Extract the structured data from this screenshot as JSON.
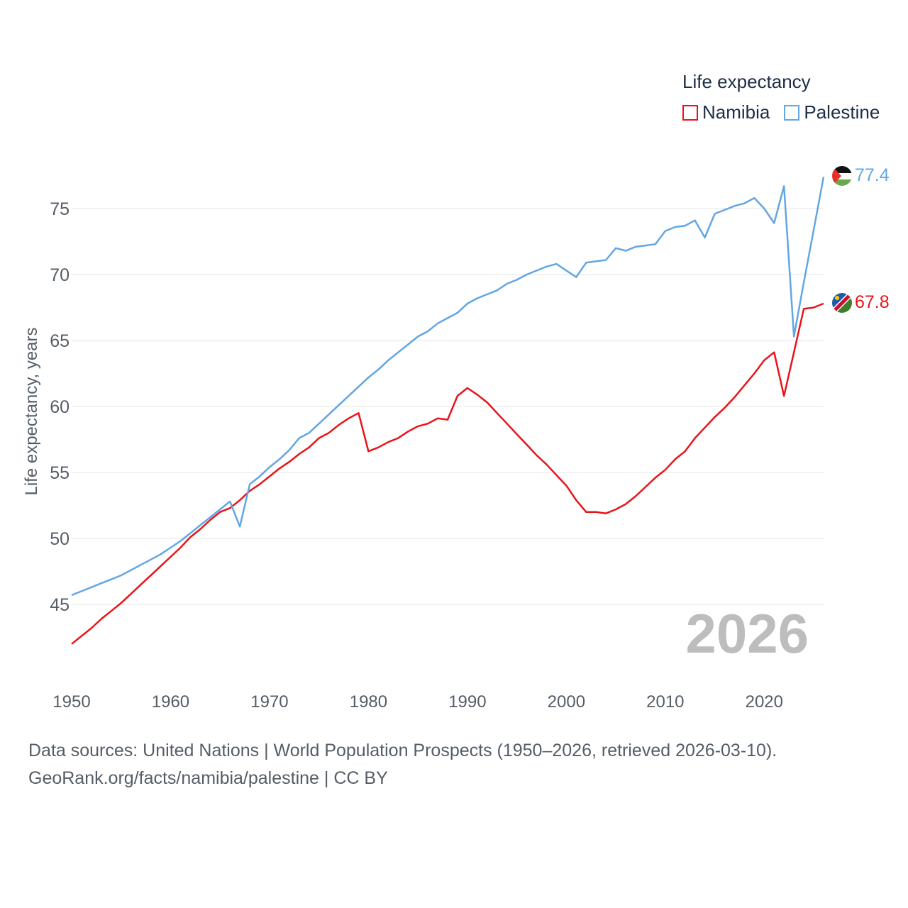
{
  "legend": {
    "title": "Life expectancy",
    "items": [
      {
        "name": "Namibia",
        "color": "#e8141a"
      },
      {
        "name": "Palestine",
        "color": "#62a6e4"
      }
    ]
  },
  "source": {
    "line1": "Data sources: United Nations | World Population Prospects (1950–2026, retrieved 2026-03-10).",
    "line2": "GeoRank.org/facts/namibia/palestine | CC BY"
  },
  "chart_data": {
    "type": "line",
    "title": "Life expectancy",
    "xlabel": "",
    "ylabel": "Life expectancy, years",
    "year_label": "2026",
    "xlim": [
      1950,
      2026
    ],
    "ylim": [
      42,
      80
    ],
    "xticks": [
      1950,
      1960,
      1970,
      1980,
      1990,
      2000,
      2010,
      2020
    ],
    "yticks": [
      45,
      50,
      55,
      60,
      65,
      70,
      75
    ],
    "grid": true,
    "legend_position": "top-right",
    "x": [
      1950,
      1951,
      1952,
      1953,
      1954,
      1955,
      1956,
      1957,
      1958,
      1959,
      1960,
      1961,
      1962,
      1963,
      1964,
      1965,
      1966,
      1967,
      1968,
      1969,
      1970,
      1971,
      1972,
      1973,
      1974,
      1975,
      1976,
      1977,
      1978,
      1979,
      1980,
      1981,
      1982,
      1983,
      1984,
      1985,
      1986,
      1987,
      1988,
      1989,
      1990,
      1991,
      1992,
      1993,
      1994,
      1995,
      1996,
      1997,
      1998,
      1999,
      2000,
      2001,
      2002,
      2003,
      2004,
      2005,
      2006,
      2007,
      2008,
      2009,
      2010,
      2011,
      2012,
      2013,
      2014,
      2015,
      2016,
      2017,
      2018,
      2019,
      2020,
      2021,
      2022,
      2023,
      2024,
      2025,
      2026
    ],
    "series": [
      {
        "name": "Namibia",
        "color": "#e8141a",
        "end_label": "67.8",
        "values": [
          42.0,
          42.6,
          43.2,
          43.9,
          44.5,
          45.1,
          45.8,
          46.5,
          47.2,
          47.9,
          48.6,
          49.3,
          50.1,
          50.7,
          51.4,
          52.0,
          52.3,
          52.9,
          53.6,
          54.1,
          54.7,
          55.3,
          55.8,
          56.4,
          56.9,
          57.6,
          58.0,
          58.6,
          59.1,
          59.5,
          56.6,
          56.9,
          57.3,
          57.6,
          58.1,
          58.5,
          58.7,
          59.1,
          59.0,
          60.8,
          61.4,
          60.9,
          60.3,
          59.5,
          58.7,
          57.9,
          57.1,
          56.3,
          55.6,
          54.8,
          54.0,
          52.9,
          52.0,
          52.0,
          51.9,
          52.2,
          52.6,
          53.2,
          53.9,
          54.6,
          55.2,
          56.0,
          56.6,
          57.6,
          58.4,
          59.2,
          59.9,
          60.7,
          61.6,
          62.5,
          63.5,
          64.1,
          60.8,
          64.1,
          67.4,
          67.5,
          67.8
        ]
      },
      {
        "name": "Palestine",
        "color": "#62a6e4",
        "end_label": "77.4",
        "values": [
          45.7,
          46.0,
          46.3,
          46.6,
          46.9,
          47.2,
          47.6,
          48.0,
          48.4,
          48.8,
          49.3,
          49.8,
          50.4,
          51.0,
          51.6,
          52.2,
          52.8,
          50.9,
          54.1,
          54.7,
          55.4,
          56.0,
          56.7,
          57.6,
          58.0,
          58.7,
          59.4,
          60.1,
          60.8,
          61.5,
          62.2,
          62.8,
          63.5,
          64.1,
          64.7,
          65.3,
          65.7,
          66.3,
          66.7,
          67.1,
          67.8,
          68.2,
          68.5,
          68.8,
          69.3,
          69.6,
          70.0,
          70.3,
          70.6,
          70.8,
          70.3,
          69.8,
          70.9,
          71.0,
          71.1,
          72.0,
          71.8,
          72.1,
          72.2,
          72.3,
          73.3,
          73.6,
          73.7,
          74.1,
          72.8,
          74.6,
          74.9,
          75.2,
          75.4,
          75.8,
          75.0,
          73.9,
          76.7,
          65.3,
          69.4,
          73.4,
          77.4
        ]
      }
    ]
  }
}
